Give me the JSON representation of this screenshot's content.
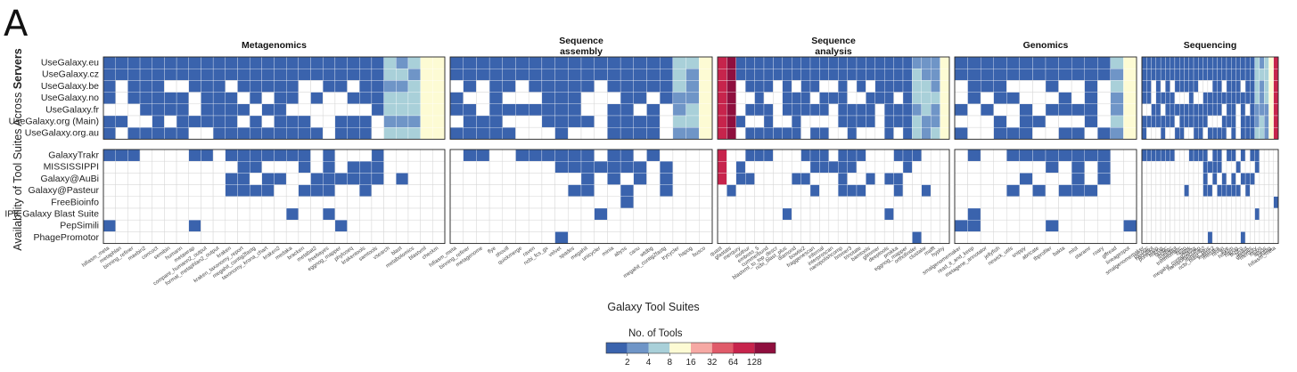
{
  "chart_data": {
    "type": "heatmap",
    "panel_label": "A",
    "title": "",
    "xlabel": "Galaxy Tool Suites",
    "ylabel_prefix": "Availability of Tool Suites Across ",
    "ylabel_bold": "Servers",
    "categories": [
      "Metagenomics",
      "Sequence\nassembly",
      "Sequence\nanalysis",
      "Genomics",
      "Sequencing"
    ],
    "rows_top": [
      "UseGalaxy.eu",
      "UseGalaxy.cz",
      "UseGalaxy.be",
      "UseGalaxy.no",
      "UseGalaxy.fr",
      "UseGalaxy.org (Main)",
      "UseGalaxy.org.au"
    ],
    "rows_bottom": [
      "GalaxyTrakr",
      "MISSISSIPPI",
      "Galaxy@AuBi",
      "Galaxy@Pasteur",
      "FreeBioinfo",
      "IPK Galaxy Blast Suite",
      "PepSimili",
      "PhagePromotor"
    ],
    "legend": {
      "title": "No. of Tools",
      "ticks": [
        "2",
        "4",
        "8",
        "16",
        "32",
        "64",
        "128"
      ],
      "colors": [
        "#3a63ad",
        "#6f95c7",
        "#a9d0d9",
        "#fdfbd4",
        "#f6a9a4",
        "#e05b6a",
        "#c7244c",
        "#8f0f3e"
      ]
    },
    "suites": [
      "hifiasm_meta",
      "metaphlan",
      "binning_refiner",
      "maxbin2",
      "concoct",
      "semibin",
      "humann",
      "metawrap",
      "compare_humann2_output",
      "format_metaphlan2_output",
      "kraken",
      "kraken_taxonomy_report",
      "megahit_contig2fastg",
      "taxonomy_krona_chart",
      "kraken2",
      "medaka",
      "bracken",
      "metabat2",
      "freebayes",
      "eggnog_mapper",
      "phyloseq",
      "krakentools",
      "samtools",
      "vsearch",
      "blast",
      "metabolomics",
      "blastxml",
      "checkm",
      "hifiasm_meta",
      "binning_refiner",
      "metagenome",
      "flye",
      "shovill",
      "quickmerge",
      "raven",
      "ncbi_fcs_gx",
      "velvet",
      "spades",
      "megahit",
      "unicycler",
      "minia",
      "abyss",
      "canu",
      "wtdbg",
      "megahit_contig2fastg",
      "trycycler",
      "hapog",
      "busco",
      "quast",
      "gfastats",
      "merqury",
      "mothur",
      "emboss_5",
      "cummerbund",
      "blastxml_to_top_descr",
      "ncbi_blast_plus",
      "diamond",
      "bowtie2",
      "fraggenescan",
      "infernal",
      "interproscan",
      "nanopolishcomp",
      "hmmer3",
      "trinotate",
      "bamtools",
      "glimmer",
      "deeptools",
      "prokka",
      "eggnog_mapper",
      "orthofinder",
      "clustalw",
      "mafft",
      "hyphy",
      "smalgenomemaker",
      "read_it_and_keep",
      "metagene_annotator",
      "jellyfish",
      "newick_utils",
      "snippy",
      "abricate",
      "tbprofiler",
      "bakta",
      "mlst",
      "staramr",
      "roary",
      "gffread",
      "lineagespot",
      "smalgenomemaker",
      "pycoqc",
      "nanoplot",
      "porechop",
      "filtlong",
      "fastqc",
      "multiqc",
      "cutadapt",
      "trimmomatic",
      "fastp",
      "seqtk",
      "megahit_contig2fastg",
      "nanopolishcomp",
      "minimap2",
      "ncbi_blast_plus",
      "kraken2",
      "medaka",
      "raven",
      "flye",
      "hifiasm",
      "hapog",
      "busco",
      "quast",
      "gfastats",
      "merqury",
      "racon",
      "abyss",
      "ragtag"
    ],
    "groups": [
      {
        "name": "Metagenomics",
        "columns": 28,
        "cols": 28,
        "top": [
          "BBBBBBBBBBBBBBBBBBBBBBBTWWWWWWWWWWWWWWWWWWWWWYYYY",
          "BBBBBBBBBBB.BBBBBBBBBBBMTWWWWWWWWWWWWWWWWWWWWYYYY",
          "BB.BBBBB..BBBBBBBBBBBBBMT.WWW............YYYBY",
          "..B.BBBB...BBBBBBBBBBBBMTWW.............YYYYY",
          "..B.BBBB...BBBBBBBBBBBBMTP...BTB........YYYYY",
          "..BBBBBBB..BBBBBBBBBBBBMTWW..............YYYYY",
          "BBBBBBBBBBBBBBBBBBBBBBBMTWW..............YYYYY"
        ]
      }
    ]
  }
}
